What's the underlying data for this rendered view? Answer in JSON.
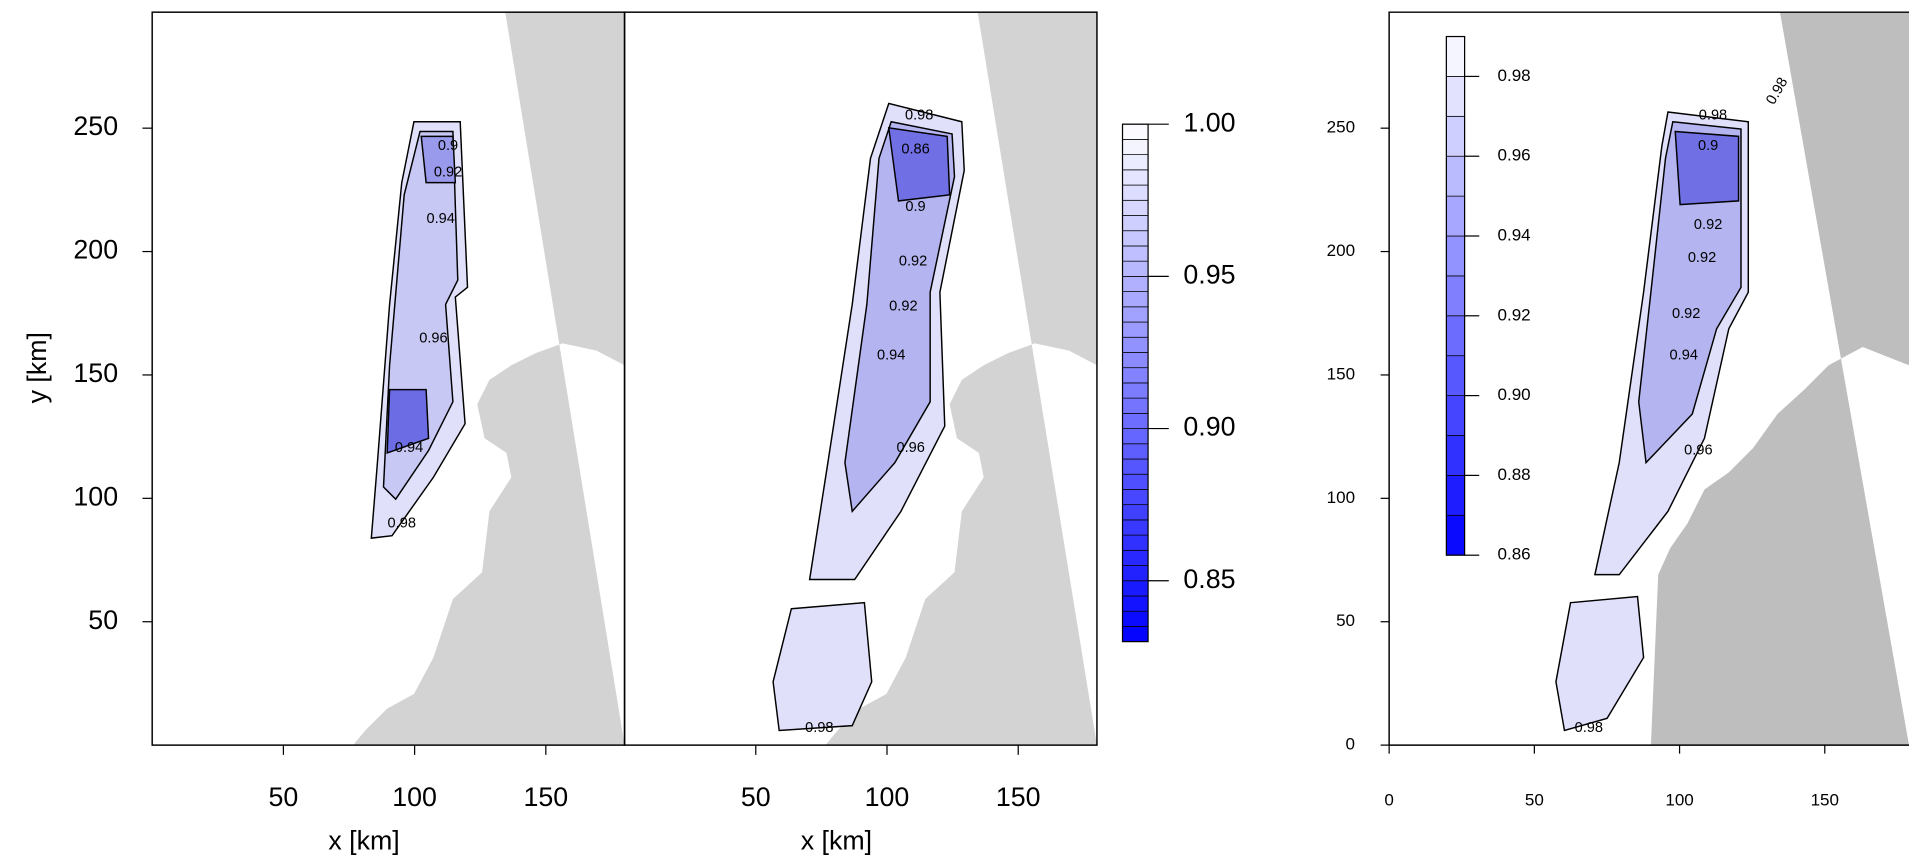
{
  "chart_data": [
    {
      "type": "contour",
      "x_label": "x [km]",
      "y_label": "y [km]",
      "xlim": [
        0,
        180
      ],
      "ylim": [
        0,
        297
      ],
      "xticks": [
        50,
        100,
        150
      ],
      "yticks": [
        50,
        100,
        150,
        200,
        250
      ],
      "land_color": "#d3d3d3",
      "contour_labels": [
        0.9,
        0.92,
        0.94,
        0.96,
        0.94,
        0.98
      ]
    },
    {
      "type": "contour",
      "x_label": "x [km]",
      "xlim": [
        0,
        180
      ],
      "ylim": [
        0,
        297
      ],
      "xticks": [
        50,
        100,
        150
      ],
      "land_color": "#d3d3d3",
      "contour_labels": [
        0.98,
        0.86,
        0.9,
        0.92,
        0.92,
        0.94,
        0.96,
        0.98
      ],
      "colorbar": {
        "lim": [
          0.83,
          1.0
        ],
        "levels_step": 0.005,
        "low_color": "#0000ff",
        "high_color": "#ffffff",
        "ticks": [
          {
            "value": 1.0,
            "label": "1.00"
          },
          0.95,
          {
            "value": 0.9,
            "label": "0.90"
          },
          0.85
        ]
      }
    },
    {
      "type": "contour",
      "xlim": [
        0,
        179
      ],
      "ylim": [
        0,
        297
      ],
      "xticks": [
        0,
        50,
        100,
        150
      ],
      "yticks": [
        0,
        50,
        100,
        150,
        200,
        250
      ],
      "land_color": "#bebebe",
      "contour_labels": [
        0.98,
        0.9,
        0.92,
        0.92,
        0.92,
        0.94,
        0.96,
        0.98,
        0.98
      ],
      "colorbar": {
        "lim": [
          0.86,
          0.99
        ],
        "levels_step": 0.01,
        "low_color": "#0000ff",
        "high_color": "#ffffff",
        "ticks": [
          0.98,
          0.96,
          0.94,
          0.92,
          {
            "value": 0.9,
            "label": "0.90"
          },
          0.88,
          0.86
        ]
      }
    }
  ]
}
